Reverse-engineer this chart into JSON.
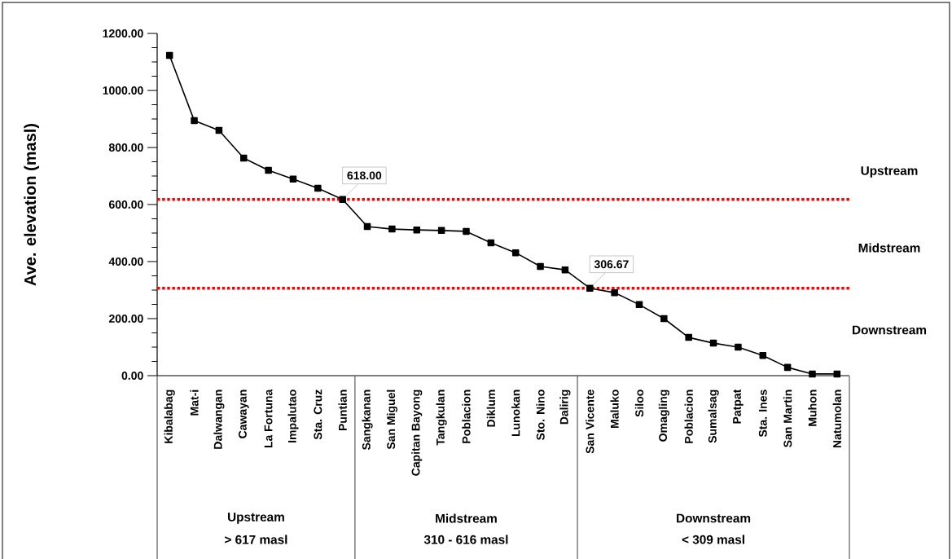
{
  "chart_data": {
    "type": "line",
    "ylabel": "Ave. elevation (masl)",
    "categories": [
      "Kibalabag",
      "Mat-i",
      "Dalwangan",
      "Cawayan",
      "La Fortuna",
      "Impalutao",
      "Sta. Cruz",
      "Puntian",
      "Sangkanan",
      "San Miguel",
      "Capitan Bayong",
      "Tangkulan",
      "Poblacion",
      "Diklum",
      "Lunokan",
      "Sto. Nino",
      "Dalirig",
      "San Vicente",
      "Maluko",
      "Siloo",
      "Omagling",
      "Poblacion",
      "Sumalsag",
      "Patpat",
      "Sta. Ines",
      "San Martin",
      "Muhon",
      "Natumolan"
    ],
    "series": [
      {
        "color": "#000000",
        "values": [
          1123,
          894,
          860,
          763,
          720,
          689,
          657,
          618,
          523,
          514,
          511,
          509,
          506,
          466,
          431,
          383,
          371,
          306.67,
          291,
          249,
          200,
          134,
          114,
          100,
          71,
          29,
          6,
          6
        ],
        "value_labels": [
          null,
          null,
          null,
          null,
          null,
          null,
          null,
          "618.00",
          null,
          null,
          null,
          null,
          null,
          null,
          null,
          null,
          null,
          "306.67",
          null,
          null,
          null,
          null,
          null,
          null,
          null,
          null,
          null,
          null
        ]
      }
    ],
    "marker": "square",
    "line_style": "solid",
    "ylim": [
      0,
      1200
    ],
    "yticks": [
      {
        "value": 0,
        "label": "0.00"
      },
      {
        "value": 200,
        "label": "200.00"
      },
      {
        "value": 400,
        "label": "400.00"
      },
      {
        "value": 600,
        "label": "600.00"
      },
      {
        "value": 800,
        "label": "800.00"
      },
      {
        "value": 1000,
        "label": "1000.00"
      },
      {
        "value": 1200,
        "label": "1200.00"
      }
    ],
    "ref_lines": [
      {
        "axis": "y",
        "value": 618,
        "color": "#ff0000",
        "line_style": "dotted"
      },
      {
        "axis": "y",
        "value": 306.67,
        "color": "#ff0000",
        "line_style": "dotted"
      }
    ],
    "annotations": [
      "Upstream",
      "Midstream",
      "Downstream",
      "Upstream",
      "> 617 masl",
      "Midstream",
      "310 - 616 masl",
      "Downstream",
      "< 309 masl"
    ]
  }
}
